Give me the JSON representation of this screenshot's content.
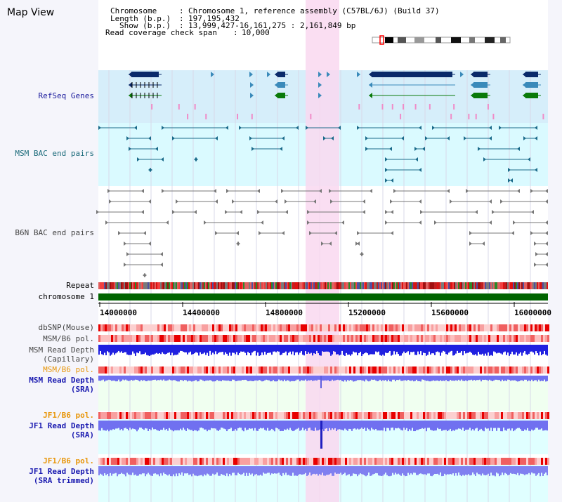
{
  "title": "Map View",
  "info": {
    "chromosome_label": "Chromosome",
    "chromosome_value": "Chromosome 1, reference assembly (C57BL/6J) (Build 37)",
    "length_label": "Length (b.p.)",
    "length_value": "197,195,432",
    "show_label": "Show (b.p.)",
    "show_value": "13,999,427-16,161,275 : 2,161,849 bp",
    "read_label": "Read coverage check span",
    "read_value": "10,000"
  },
  "tracks": {
    "refseq": "RefSeq Genes",
    "msm_bac": "MSM BAC end pairs",
    "b6n_bac": "B6N BAC end pairs",
    "repeat": "Repeat",
    "chromosome": "chromosome 1",
    "dbsnp": "dbSNP(Mouse)",
    "msm_b6_pol_1": "MSM/B6 pol.",
    "msm_depth_cap_1": "MSM Read Depth",
    "msm_depth_cap_2": "(Capillary)",
    "msm_b6_pol_2": "MSM/B6 pol.",
    "msm_depth_sra_1": "MSM Read Depth",
    "msm_depth_sra_2": "(SRA)",
    "jf1_b6_pol_1": "JF1/B6 pol.",
    "jf1_depth_sra_1": "JF1 Read Depth",
    "jf1_depth_sra_2": "(SRA)",
    "jf1_b6_pol_2": "JF1/B6 pol.",
    "jf1_trim_1": "JF1 Read Depth",
    "jf1_trim_2": "(SRA trimmed)"
  },
  "axis_ticks": [
    "14000000",
    "14400000",
    "14800000",
    "15200000",
    "15600000",
    "16000000"
  ],
  "colors": {
    "highlight": "#f9d8f0",
    "refseq_bg": "#d6eefa",
    "msm_bac_bg": "#dafaff",
    "chromosome_bar": "#006400",
    "gene_dark": "#0a2a6a",
    "gene_mid": "#3a8aba",
    "gene_green": "#0a7a0a",
    "depth_blue": "#2020e0",
    "depth_light": "#7070f0"
  }
}
